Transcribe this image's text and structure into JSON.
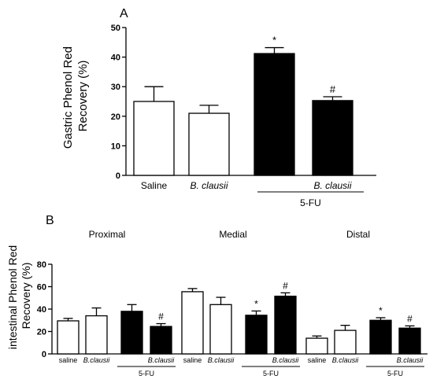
{
  "chart_data": [
    {
      "type": "bar",
      "panel_label": "A",
      "ylabel": "Gastric Phenol Red Recovery (%)",
      "ylabel_lines": [
        "Gastric Phenol Red",
        "Recovery (%)"
      ],
      "ylim": [
        0,
        50
      ],
      "yticks": [
        "0",
        "10",
        "20",
        "30",
        "40",
        "50"
      ],
      "categories": [
        "Saline",
        "B. clausii",
        "",
        "B. clausii"
      ],
      "category_italic": [
        false,
        true,
        false,
        true
      ],
      "values": [
        25.0,
        21.0,
        41.2,
        25.3
      ],
      "errors": [
        5.0,
        2.7,
        2.0,
        1.3
      ],
      "fills": [
        "white",
        "white",
        "black",
        "black"
      ],
      "significance": [
        "",
        "",
        "*",
        "#"
      ],
      "group_label": "5-FU"
    },
    {
      "type": "bar",
      "panel_label": "B",
      "ylabel": "intestinal Phenol Red Recovery (%)",
      "ylabel_lines": [
        "intestinal Phenol Red",
        "Recovery  (%)"
      ],
      "ylim": [
        0,
        80
      ],
      "yticks": [
        "0",
        "20",
        "40",
        "60",
        "80"
      ],
      "segments": [
        {
          "name": "Proximal",
          "categories": [
            "saline",
            "B.clausii",
            "",
            "B.clausii"
          ],
          "values": [
            29.5,
            34.0,
            38.0,
            24.5
          ],
          "errors": [
            2.2,
            7.0,
            6.0,
            2.5
          ],
          "fills": [
            "white",
            "white",
            "black",
            "black"
          ],
          "significance": [
            "",
            "",
            "",
            "#"
          ],
          "group_label": "5-FU"
        },
        {
          "name": "Medial",
          "categories": [
            "saline",
            "B.clausii",
            "",
            "B.clausii"
          ],
          "values": [
            55.5,
            44.0,
            34.5,
            51.5
          ],
          "errors": [
            2.8,
            6.5,
            3.8,
            3.0
          ],
          "fills": [
            "white",
            "white",
            "black",
            "black"
          ],
          "significance": [
            "",
            "",
            "*",
            "#"
          ],
          "group_label": "5-FU"
        },
        {
          "name": "Distal",
          "categories": [
            "saline",
            "B.clausii",
            "",
            "B.clausii"
          ],
          "values": [
            14.0,
            21.0,
            30.0,
            23.0
          ],
          "errors": [
            2.0,
            4.5,
            2.3,
            2.0
          ],
          "fills": [
            "white",
            "white",
            "black",
            "black"
          ],
          "significance": [
            "",
            "",
            "*",
            "#"
          ],
          "group_label": "5-FU"
        }
      ]
    }
  ]
}
